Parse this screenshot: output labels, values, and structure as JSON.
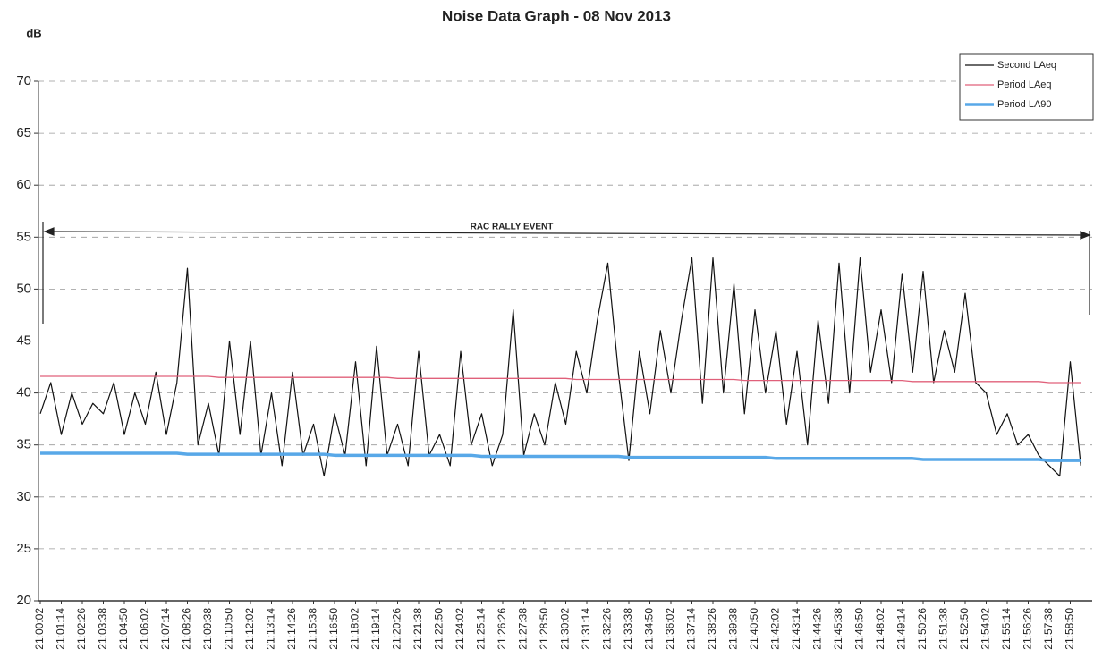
{
  "chart_data": {
    "type": "line",
    "title": "Noise Data Graph - 08 Nov 2013",
    "y_label": "dB",
    "annotation": "RAC RALLY EVENT",
    "categories": [
      "21:00:02",
      null,
      "21:01:14",
      null,
      "21:02:26",
      null,
      "21:03:38",
      null,
      "21:04:50",
      null,
      "21:06:02",
      null,
      "21:07:14",
      null,
      "21:08:26",
      null,
      "21:09:38",
      null,
      "21:10:50",
      null,
      "21:12:02",
      null,
      "21:13:14",
      null,
      "21:14:26",
      null,
      "21:15:38",
      null,
      "21:16:50",
      null,
      "21:18:02",
      null,
      "21:19:14",
      null,
      "21:20:26",
      null,
      "21:21:38",
      null,
      "21:22:50",
      null,
      "21:24:02",
      null,
      "21:25:14",
      null,
      "21:26:26",
      null,
      "21:27:38",
      null,
      "21:28:50",
      null,
      "21:30:02",
      null,
      "21:31:14",
      null,
      "21:32:26",
      null,
      "21:33:38",
      null,
      "21:34:50",
      null,
      "21:36:02",
      null,
      "21:37:14",
      null,
      "21:38:26",
      null,
      "21:39:38",
      null,
      "21:40:50",
      null,
      "21:42:02",
      null,
      "21:43:14",
      null,
      "21:44:26",
      null,
      "21:45:38",
      null,
      "21:46:50",
      null,
      "21:48:02",
      null,
      "21:49:14",
      null,
      "21:50:26",
      null,
      "21:51:38",
      null,
      "21:52:50",
      null,
      "21:54:02",
      null,
      "21:55:14",
      null,
      "21:56:26",
      null,
      "21:57:38",
      null,
      "21:58:50",
      null
    ],
    "series": [
      {
        "name": "Second LAeq",
        "color": "#111111",
        "width": 1.2,
        "values": [
          38,
          41,
          36,
          40,
          37,
          39,
          38,
          41,
          36,
          40,
          37,
          42,
          36,
          41,
          52,
          35,
          39,
          34,
          45,
          36,
          45,
          34,
          40,
          33,
          42,
          34,
          37,
          32,
          38,
          34,
          43,
          33,
          44.5,
          34,
          37,
          33,
          44,
          34,
          36,
          33,
          44,
          35,
          38,
          33,
          36,
          48,
          34,
          38,
          35,
          41,
          37,
          44,
          40,
          47,
          52.5,
          42,
          33.5,
          44,
          38,
          46,
          40,
          47,
          53,
          39,
          53,
          40,
          50.5,
          38,
          48,
          40,
          46,
          37,
          44,
          35,
          47,
          39,
          52.5,
          40,
          53,
          42,
          48,
          41,
          51.5,
          42,
          51.7,
          41,
          46,
          42,
          49.6,
          41,
          40,
          36,
          38,
          35,
          36,
          34,
          33,
          32,
          43,
          33
        ]
      },
      {
        "name": "Period LAeq",
        "color": "#e0607a",
        "width": 1.3,
        "values": [
          41.6,
          41.6,
          41.6,
          41.6,
          41.6,
          41.6,
          41.6,
          41.6,
          41.6,
          41.6,
          41.6,
          41.6,
          41.6,
          41.6,
          41.6,
          41.6,
          41.6,
          41.5,
          41.5,
          41.5,
          41.5,
          41.5,
          41.5,
          41.5,
          41.5,
          41.5,
          41.5,
          41.5,
          41.5,
          41.5,
          41.5,
          41.5,
          41.5,
          41.5,
          41.4,
          41.4,
          41.4,
          41.4,
          41.4,
          41.4,
          41.4,
          41.4,
          41.4,
          41.4,
          41.4,
          41.4,
          41.4,
          41.4,
          41.4,
          41.4,
          41.4,
          41.3,
          41.3,
          41.3,
          41.3,
          41.3,
          41.3,
          41.3,
          41.3,
          41.3,
          41.3,
          41.3,
          41.3,
          41.3,
          41.3,
          41.3,
          41.3,
          41.2,
          41.2,
          41.2,
          41.2,
          41.2,
          41.2,
          41.2,
          41.2,
          41.2,
          41.2,
          41.2,
          41.2,
          41.2,
          41.2,
          41.2,
          41.2,
          41.1,
          41.1,
          41.1,
          41.1,
          41.1,
          41.1,
          41.1,
          41.1,
          41.1,
          41.1,
          41.1,
          41.1,
          41.1,
          41.0,
          41.0,
          41.0,
          41.0
        ]
      },
      {
        "name": "Period LA90",
        "color": "#58a8e8",
        "width": 3.5,
        "values": [
          34.2,
          34.2,
          34.2,
          34.2,
          34.2,
          34.2,
          34.2,
          34.2,
          34.2,
          34.2,
          34.2,
          34.2,
          34.2,
          34.2,
          34.1,
          34.1,
          34.1,
          34.1,
          34.1,
          34.1,
          34.1,
          34.1,
          34.1,
          34.1,
          34.1,
          34.1,
          34.1,
          34.1,
          34.0,
          34.0,
          34.0,
          34.0,
          34.0,
          34.0,
          34.0,
          34.0,
          34.0,
          34.0,
          34.0,
          34.0,
          34.0,
          34.0,
          33.9,
          33.9,
          33.9,
          33.9,
          33.9,
          33.9,
          33.9,
          33.9,
          33.9,
          33.9,
          33.9,
          33.9,
          33.9,
          33.9,
          33.8,
          33.8,
          33.8,
          33.8,
          33.8,
          33.8,
          33.8,
          33.8,
          33.8,
          33.8,
          33.8,
          33.8,
          33.8,
          33.8,
          33.7,
          33.7,
          33.7,
          33.7,
          33.7,
          33.7,
          33.7,
          33.7,
          33.7,
          33.7,
          33.7,
          33.7,
          33.7,
          33.7,
          33.6,
          33.6,
          33.6,
          33.6,
          33.6,
          33.6,
          33.6,
          33.6,
          33.6,
          33.6,
          33.6,
          33.6,
          33.5,
          33.5,
          33.5,
          33.5
        ]
      }
    ],
    "ylim": [
      20,
      70
    ],
    "yticks": [
      20,
      25,
      30,
      35,
      40,
      45,
      50,
      55,
      60,
      65,
      70
    ],
    "grid": true,
    "legend": "top-right"
  }
}
